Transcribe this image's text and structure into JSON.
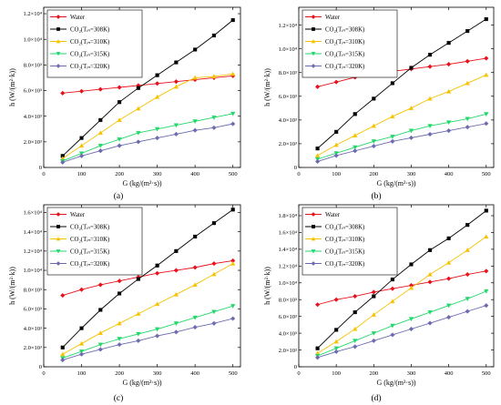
{
  "chart_data": [
    {
      "panel": "(a)",
      "type": "line",
      "xlabel": "G (kg/(m²·s))",
      "ylabel": "h (W/(m²·k))",
      "xlim": [
        0,
        520
      ],
      "ylim": [
        0,
        12500
      ],
      "xticks": [
        0,
        100,
        200,
        300,
        400,
        500
      ],
      "yticks": [
        0,
        2000,
        4000,
        6000,
        8000,
        10000,
        12000
      ],
      "ytick_labels": [
        "0",
        "2.0×10³",
        "4.0×10³",
        "6.0×10³",
        "8.0×10³",
        "1.0×10⁴",
        "1.2×10⁴"
      ],
      "x": [
        50,
        100,
        150,
        200,
        250,
        300,
        350,
        400,
        450,
        500
      ],
      "series": [
        {
          "name": "Water",
          "values": [
            5800,
            5950,
            6100,
            6250,
            6400,
            6550,
            6700,
            6850,
            7000,
            7150
          ]
        },
        {
          "name": "CO₂(Tᵢₙ=308K)",
          "values": [
            900,
            2300,
            3700,
            5100,
            6200,
            7200,
            8200,
            9200,
            10300,
            11500
          ]
        },
        {
          "name": "CO₂(Tᵢₙ=310K)",
          "values": [
            700,
            1700,
            2700,
            3700,
            4600,
            5500,
            6300,
            7000,
            7100,
            7300
          ]
        },
        {
          "name": "CO₂(Tᵢₙ=315K)",
          "values": [
            500,
            1100,
            1700,
            2200,
            2700,
            3000,
            3300,
            3600,
            3900,
            4200
          ]
        },
        {
          "name": "CO₂(Tᵢₙ=320K)",
          "values": [
            400,
            900,
            1300,
            1700,
            2000,
            2300,
            2600,
            2900,
            3100,
            3400
          ]
        }
      ]
    },
    {
      "panel": "(b)",
      "type": "line",
      "xlabel": "G (kg/(m²·s))",
      "ylabel": "h (W/(m²·k))",
      "xlim": [
        0,
        520
      ],
      "ylim": [
        0,
        13500
      ],
      "xticks": [
        0,
        100,
        200,
        300,
        400,
        500
      ],
      "yticks": [
        0,
        2000,
        4000,
        6000,
        8000,
        10000,
        12000
      ],
      "ytick_labels": [
        "0",
        "2.0×10³",
        "4.0×10³",
        "6.0×10³",
        "8.0×10³",
        "1.0×10⁴",
        "1.2×10⁴"
      ],
      "x": [
        50,
        100,
        150,
        200,
        250,
        300,
        350,
        400,
        450,
        500
      ],
      "series": [
        {
          "name": "Water",
          "values": [
            6800,
            7200,
            7600,
            7900,
            8100,
            8300,
            8500,
            8700,
            8950,
            9200
          ]
        },
        {
          "name": "CO₂(Tᵢₙ=308K)",
          "values": [
            1600,
            3000,
            4500,
            5800,
            7100,
            8400,
            9500,
            10500,
            11500,
            12500
          ]
        },
        {
          "name": "CO₂(Tᵢₙ=310K)",
          "values": [
            1000,
            1900,
            2700,
            3500,
            4300,
            5000,
            5800,
            6400,
            7100,
            7800
          ]
        },
        {
          "name": "CO₂(Tᵢₙ=315K)",
          "values": [
            700,
            1200,
            1700,
            2200,
            2600,
            3100,
            3500,
            3800,
            4100,
            4500
          ]
        },
        {
          "name": "CO₂(Tᵢₙ=320K)",
          "values": [
            500,
            1000,
            1400,
            1800,
            2200,
            2500,
            2800,
            3100,
            3400,
            3700
          ]
        }
      ]
    },
    {
      "panel": "(c)",
      "type": "line",
      "xlabel": "G (kg/(m²·s))",
      "ylabel": "h (W/(m²·k))",
      "xlim": [
        0,
        520
      ],
      "ylim": [
        0,
        16800
      ],
      "xticks": [
        0,
        100,
        200,
        300,
        400,
        500
      ],
      "yticks": [
        0,
        2000,
        4000,
        6000,
        8000,
        10000,
        12000,
        14000,
        16000
      ],
      "ytick_labels": [
        "0",
        "2.0×10³",
        "4.0×10³",
        "6.0×10³",
        "8.0×10³",
        "1.0×10⁴",
        "1.2×10⁴",
        "1.4×10⁴",
        "1.6×10⁴"
      ],
      "x": [
        50,
        100,
        150,
        200,
        250,
        300,
        350,
        400,
        450,
        500
      ],
      "series": [
        {
          "name": "Water",
          "values": [
            7400,
            8000,
            8500,
            8900,
            9300,
            9700,
            10000,
            10300,
            10700,
            11000
          ]
        },
        {
          "name": "CO₂(Tᵢₙ=308K)",
          "values": [
            2000,
            4000,
            5900,
            7600,
            9100,
            10500,
            12000,
            13500,
            14900,
            16300
          ]
        },
        {
          "name": "CO₂(Tᵢₙ=310K)",
          "values": [
            1300,
            2400,
            3500,
            4500,
            5500,
            6500,
            7500,
            8500,
            9600,
            10700
          ]
        },
        {
          "name": "CO₂(Tᵢₙ=315K)",
          "values": [
            900,
            1600,
            2300,
            2900,
            3400,
            3900,
            4500,
            5100,
            5700,
            6300
          ]
        },
        {
          "name": "CO₂(Tᵢₙ=320K)",
          "values": [
            700,
            1300,
            1800,
            2300,
            2700,
            3200,
            3600,
            4100,
            4500,
            5000
          ]
        }
      ]
    },
    {
      "panel": "(d)",
      "type": "line",
      "xlabel": "G (kg/(m²·s))",
      "ylabel": "h (W/(m²·k))",
      "xlim": [
        0,
        520
      ],
      "ylim": [
        0,
        19300
      ],
      "xticks": [
        0,
        100,
        200,
        300,
        400,
        500
      ],
      "yticks": [
        0,
        2000,
        4000,
        6000,
        8000,
        10000,
        12000,
        14000,
        16000,
        18000
      ],
      "ytick_labels": [
        "0",
        "2.0×10³",
        "4.0×10³",
        "6.0×10³",
        "8.0×10³",
        "1.0×10⁴",
        "1.2×10⁴",
        "1.4×10⁴",
        "1.6×10⁴",
        "1.8×10⁴"
      ],
      "x": [
        50,
        100,
        150,
        200,
        250,
        300,
        350,
        400,
        450,
        500
      ],
      "series": [
        {
          "name": "Water",
          "values": [
            7400,
            8000,
            8400,
            8900,
            9300,
            9700,
            10100,
            10500,
            11000,
            11400
          ]
        },
        {
          "name": "CO₂(Tᵢₙ=308K)",
          "values": [
            2200,
            4400,
            6500,
            8400,
            10400,
            12200,
            13900,
            15300,
            16900,
            18600
          ]
        },
        {
          "name": "CO₂(Tᵢₙ=310K)",
          "values": [
            1600,
            3000,
            4500,
            6200,
            7800,
            9400,
            11000,
            12400,
            13900,
            15500
          ]
        },
        {
          "name": "CO₂(Tᵢₙ=315K)",
          "values": [
            1300,
            2200,
            3100,
            4000,
            4900,
            5700,
            6500,
            7300,
            8100,
            9000
          ]
        },
        {
          "name": "CO₂(Tᵢₙ=320K)",
          "values": [
            1100,
            1800,
            2400,
            3100,
            3800,
            4500,
            5200,
            5900,
            6600,
            7300
          ]
        }
      ]
    }
  ],
  "series_colors": [
    "#e8101a",
    "#000000",
    "#f7c200",
    "#22d86a",
    "#6c6ab0"
  ],
  "series_markers": [
    "diamond",
    "square",
    "triangle-up",
    "triangle-down",
    "diamond"
  ]
}
